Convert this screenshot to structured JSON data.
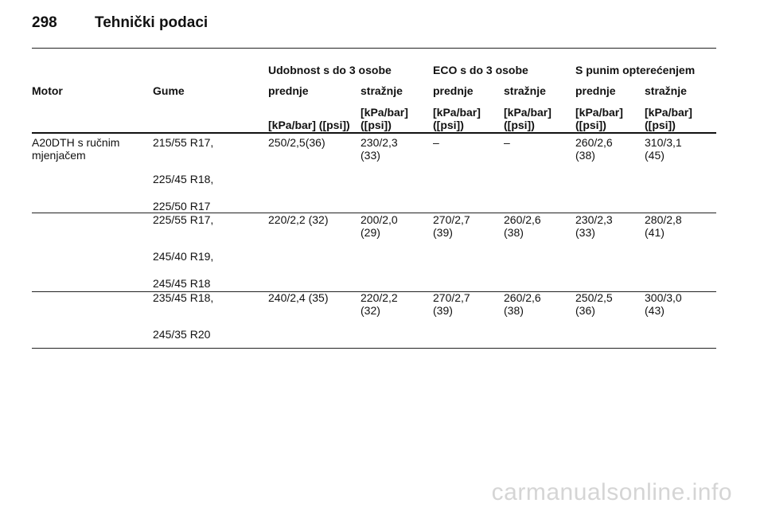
{
  "page": {
    "number": "298",
    "title": "Tehnički podaci"
  },
  "table": {
    "group_headers": [
      "Udobnost s do 3 osobe",
      "ECO s do 3 osobe",
      "S punim opterećenjem"
    ],
    "col_headers": [
      "Motor",
      "Gume",
      "prednje",
      "stražnje",
      "prednje",
      "stražnje",
      "prednje",
      "stražnje"
    ],
    "unit_headers": [
      [
        "[kPa/bar] ([psi])"
      ],
      [
        "[kPa/bar]",
        "([psi])"
      ],
      [
        "[kPa/bar]",
        "([psi])"
      ],
      [
        "[kPa/bar]",
        "([psi])"
      ],
      [
        "[kPa/bar]",
        "([psi])"
      ],
      [
        "[kPa/bar]",
        "([psi])"
      ]
    ],
    "engine": [
      "A20DTH s ručnim",
      "mjenjačem"
    ],
    "groups": [
      {
        "tyres": [
          "215/55 R17,",
          "225/45 R18,",
          "225/50 R17"
        ],
        "values": [
          [
            "250/2,5(36)"
          ],
          [
            "230/2,3",
            "(33)"
          ],
          [
            "–"
          ],
          [
            "–"
          ],
          [
            "260/2,6",
            "(38)"
          ],
          [
            "310/3,1",
            "(45)"
          ]
        ]
      },
      {
        "tyres": [
          "225/55 R17,",
          "245/40 R19,",
          "245/45 R18"
        ],
        "values": [
          [
            "220/2,2 (32)"
          ],
          [
            "200/2,0",
            "(29)"
          ],
          [
            "270/2,7",
            "(39)"
          ],
          [
            "260/2,6",
            "(38)"
          ],
          [
            "230/2,3",
            "(33)"
          ],
          [
            "280/2,8",
            "(41)"
          ]
        ]
      },
      {
        "tyres": [
          "235/45 R18,",
          "245/35 R20"
        ],
        "values": [
          [
            "240/2,4 (35)"
          ],
          [
            "220/2,2",
            "(32)"
          ],
          [
            "270/2,7",
            "(39)"
          ],
          [
            "260/2,6",
            "(38)"
          ],
          [
            "250/2,5",
            "(36)"
          ],
          [
            "300/3,0",
            "(43)"
          ]
        ]
      }
    ]
  },
  "watermark": "carmanualsonline.info"
}
